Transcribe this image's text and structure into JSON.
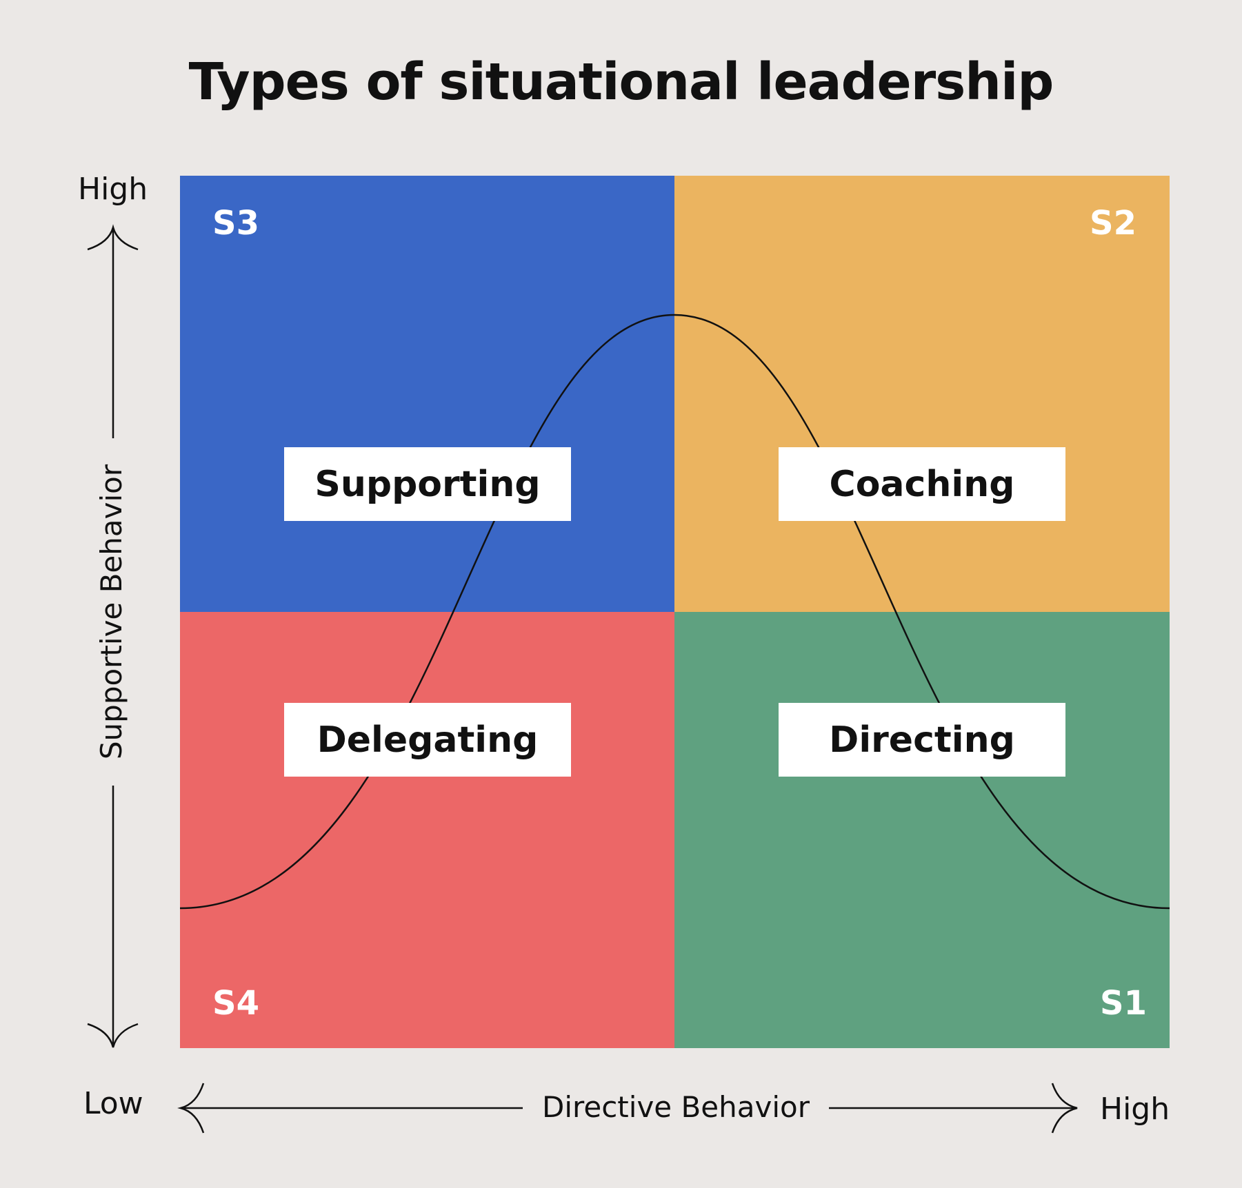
{
  "title": "Types of situational leadership",
  "y_axis": {
    "label": "Supportive Behavior",
    "high": "High",
    "low": "Low"
  },
  "x_axis": {
    "label": "Directive Behavior",
    "high": "High"
  },
  "quadrants": [
    {
      "code": "S3",
      "style": "Supporting",
      "color": "#3a67c6"
    },
    {
      "code": "S2",
      "style": "Coaching",
      "color": "#ebb460"
    },
    {
      "code": "S4",
      "style": "Delegating",
      "color": "#ec6767"
    },
    {
      "code": "S1",
      "style": "Directing",
      "color": "#5fa180"
    }
  ],
  "background_color": "#ebe8e6"
}
